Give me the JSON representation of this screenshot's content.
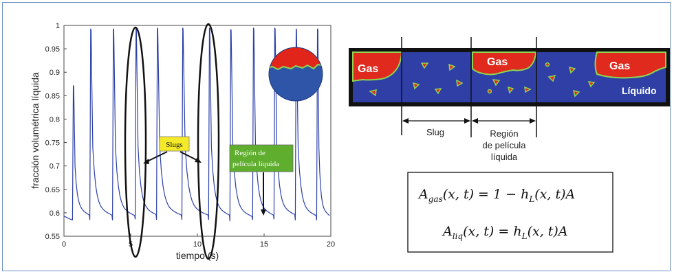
{
  "chart_data": {
    "type": "line",
    "xlabel": "tiempo (s)",
    "ylabel": "fracción volumétrica líquida",
    "xlim": [
      0,
      20
    ],
    "ylim": [
      0.55,
      1
    ],
    "x_ticks": [
      "0",
      "5",
      "10",
      "15",
      "20"
    ],
    "y_ticks": [
      "0.55",
      "0.6",
      "0.65",
      "0.7",
      "0.75",
      "0.8",
      "0.85",
      "0.9",
      "0.95",
      "1"
    ],
    "line_color": "#2b3fa8",
    "baseline": 0.585,
    "peaks": [
      {
        "t": 0.7,
        "peak": 0.872,
        "base": 0.585
      },
      {
        "t": 2.0,
        "peak": 0.993,
        "base": 0.585
      },
      {
        "t": 3.7,
        "peak": 0.993,
        "base": 0.584
      },
      {
        "t": 5.4,
        "peak": 0.995,
        "base": 0.586
      },
      {
        "t": 7.0,
        "peak": 0.995,
        "base": 0.585
      },
      {
        "t": 8.9,
        "peak": 0.995,
        "base": 0.585
      },
      {
        "t": 10.9,
        "peak": 0.995,
        "base": 0.585
      },
      {
        "t": 12.5,
        "peak": 0.992,
        "base": 0.582
      },
      {
        "t": 14.2,
        "peak": 0.995,
        "base": 0.585
      },
      {
        "t": 15.8,
        "peak": 0.995,
        "base": 0.586
      },
      {
        "t": 17.4,
        "peak": 0.993,
        "base": 0.584
      },
      {
        "t": 19.0,
        "peak": 0.993,
        "base": 0.584
      }
    ],
    "annotations": {
      "slugs": "Slugs",
      "film_region_line1": "Región de",
      "film_region_line2": "película líquida"
    }
  },
  "pipe": {
    "gas_label": "Gas",
    "liquid_label": "Líquido",
    "slug_label": "Slug",
    "film_label_line1": "Región",
    "film_label_line2": "de película",
    "film_label_line3": "líquida",
    "colors": {
      "liquid": "#2f3fa6",
      "gas": "#e02a1e",
      "interface": "#8ed651",
      "pipe_border": "#111111"
    }
  },
  "equations": {
    "gas": {
      "lhs": "A",
      "lhs_sub": "gas",
      "rhs": "(x, t) = 1 − h",
      "rhs_sub": "L",
      "tail": "(x, t)A"
    },
    "liq": {
      "lhs": "A",
      "lhs_sub": "liq",
      "rhs": "(x, t) = h",
      "rhs_sub": "L",
      "tail": "(x, t)A"
    }
  }
}
